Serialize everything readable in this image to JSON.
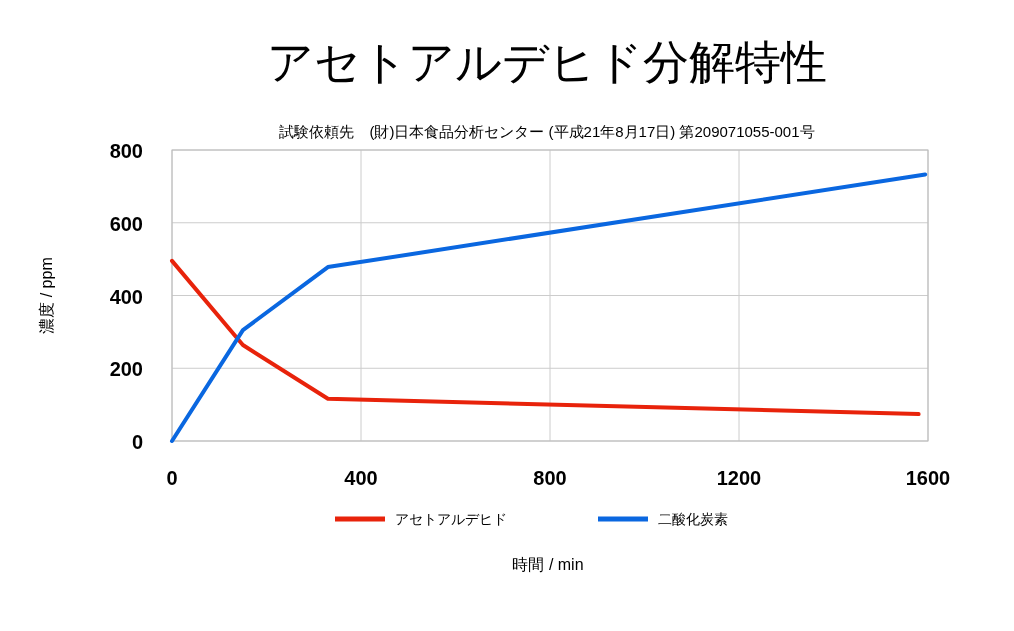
{
  "chart_data": {
    "type": "line",
    "title": "アセトアルデヒド分解特性",
    "subtitle": "試験依頼先　(財)日本食品分析センター (平成21年8月17日) 第209071055-001号",
    "xlabel": "時間 / min",
    "ylabel": "濃度 / ppm",
    "xlim": [
      0,
      1600
    ],
    "xticks": [
      0,
      400,
      800,
      1200,
      1600
    ],
    "ylim": [
      0,
      800
    ],
    "yticks": [
      0,
      200,
      400,
      600,
      800
    ],
    "grid": true,
    "legend": "bottom",
    "marker": "none",
    "line_style": "solid",
    "series": [
      {
        "name": "アセトアルデヒド",
        "color": "#e8230b",
        "x": [
          0,
          150,
          330,
          1580
        ],
        "values": [
          495,
          264,
          116,
          74
        ]
      },
      {
        "name": "二酸化炭素",
        "color": "#0a67e0",
        "x": [
          0,
          150,
          330,
          1594
        ],
        "values": [
          0,
          305,
          478,
          733
        ]
      }
    ]
  }
}
